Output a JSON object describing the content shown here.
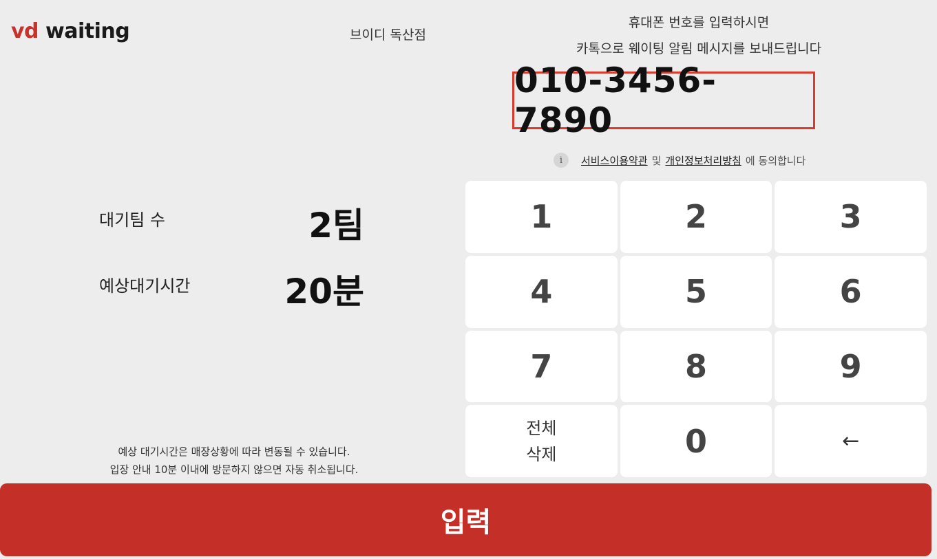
{
  "header": {
    "logo_vd": "vd",
    "logo_waiting": "waiting",
    "store_name": "브이디 독산점",
    "instruction_line1": "휴대폰 번호를 입력하시면",
    "instruction_line2": "카톡으로 웨이팅 알림 메시지를 보내드립니다"
  },
  "phone": {
    "value": "010-3456-7890"
  },
  "agreement": {
    "info_icon": "i",
    "terms_link": "서비스이용약관",
    "conj": "및",
    "privacy_link": "개인정보처리방침",
    "suffix": "에 동의합니다"
  },
  "stats": {
    "teams_label": "대기팀 수",
    "teams_value": "2팀",
    "time_label": "예상대기시간",
    "time_value": "20분"
  },
  "notice": {
    "line1": "예상 대기시간은 매장상황에 따라 변동될 수 있습니다.",
    "line2": "입장 안내 10분 이내에 방문하지 않으면 자동 취소됩니다."
  },
  "keypad": {
    "k1": "1",
    "k2": "2",
    "k3": "3",
    "k4": "4",
    "k5": "5",
    "k6": "6",
    "k7": "7",
    "k8": "8",
    "k9": "9",
    "clear": "전체\n삭제",
    "k0": "0",
    "backspace": "←"
  },
  "submit_label": "입력",
  "colors": {
    "accent": "#c43027",
    "highlight_border": "#d93a2b",
    "background": "#ededed"
  }
}
